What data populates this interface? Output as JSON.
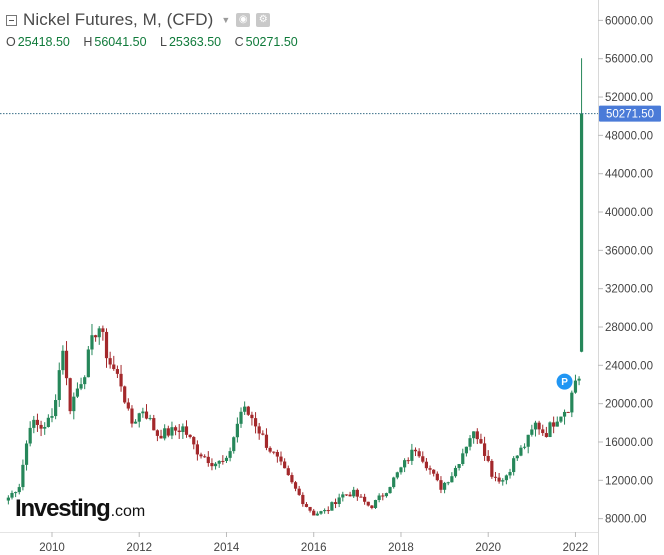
{
  "header": {
    "title": "Nickel Futures, M, (CFD)",
    "ohlc": {
      "o_label": "O",
      "o_value": "25418.50",
      "h_label": "H",
      "h_value": "56041.50",
      "l_label": "L",
      "l_value": "25363.50",
      "c_label": "C",
      "c_value": "50271.50"
    },
    "icons": [
      "collapse-icon",
      "dropdown-caret-icon",
      "eye-icon",
      "gear-icon"
    ]
  },
  "logo": {
    "main": "Investing",
    "suffix": ".com"
  },
  "colors": {
    "up": "#26875a",
    "down": "#a3282b",
    "price_tag": "#4a7bd8",
    "price_line": "#3a6f88",
    "marker": "#2196f3"
  },
  "price_tag": {
    "label": "50271.50",
    "value": 50271.5
  },
  "event_marker": {
    "label": "P",
    "date": "2021.75",
    "value": 22300
  },
  "chart_data": {
    "type": "candlestick",
    "interval": "monthly",
    "y_axis": {
      "min": 6500,
      "max": 61500,
      "ticks": [
        8000,
        12000,
        16000,
        20000,
        24000,
        28000,
        32000,
        36000,
        40000,
        44000,
        48000,
        52000,
        56000,
        60000
      ],
      "tick_labels": [
        "8000.00",
        "12000.00",
        "16000.00",
        "20000.00",
        "24000.00",
        "28000.00",
        "32000.00",
        "36000.00",
        "40000.00",
        "44000.00",
        "48000.00",
        "52000.00",
        "56000.00",
        "60000.00"
      ]
    },
    "x_axis": {
      "min": 2008.9,
      "max": 2022.15,
      "ticks": [
        2010,
        2012,
        2014,
        2016,
        2018,
        2020,
        2022
      ],
      "tick_labels": [
        "2010",
        "2012",
        "2014",
        "2016",
        "2018",
        "2020",
        "2022"
      ]
    },
    "anchors": [
      [
        2009.0,
        10200
      ],
      [
        2009.25,
        11500
      ],
      [
        2009.5,
        18000
      ],
      [
        2009.75,
        17500
      ],
      [
        2010.0,
        18500
      ],
      [
        2010.25,
        26000
      ],
      [
        2010.4,
        19500
      ],
      [
        2010.75,
        23500
      ],
      [
        2011.05,
        28500
      ],
      [
        2011.3,
        24500
      ],
      [
        2011.6,
        22000
      ],
      [
        2011.8,
        17800
      ],
      [
        2012.1,
        19500
      ],
      [
        2012.4,
        16800
      ],
      [
        2012.7,
        17000
      ],
      [
        2013.0,
        17500
      ],
      [
        2013.3,
        15200
      ],
      [
        2013.7,
        13800
      ],
      [
        2014.0,
        13900
      ],
      [
        2014.35,
        19500
      ],
      [
        2014.6,
        18500
      ],
      [
        2014.9,
        15900
      ],
      [
        2015.2,
        13900
      ],
      [
        2015.5,
        11600
      ],
      [
        2015.8,
        9500
      ],
      [
        2016.0,
        8500
      ],
      [
        2016.3,
        8800
      ],
      [
        2016.6,
        10400
      ],
      [
        2016.9,
        10700
      ],
      [
        2017.3,
        9200
      ],
      [
        2017.6,
        10600
      ],
      [
        2018.0,
        13200
      ],
      [
        2018.35,
        15500
      ],
      [
        2018.6,
        13600
      ],
      [
        2018.9,
        11200
      ],
      [
        2019.2,
        12800
      ],
      [
        2019.6,
        16800
      ],
      [
        2019.8,
        16700
      ],
      [
        2020.1,
        12500
      ],
      [
        2020.35,
        12000
      ],
      [
        2020.6,
        14200
      ],
      [
        2020.9,
        16100
      ],
      [
        2021.1,
        18000
      ],
      [
        2021.3,
        16800
      ],
      [
        2021.6,
        18800
      ],
      [
        2021.85,
        19800
      ],
      [
        2022.0,
        22500
      ],
      [
        2022.05,
        22800
      ]
    ],
    "last_candle": {
      "date": 2022.14,
      "open": 25418.5,
      "high": 56041.5,
      "low": 25363.5,
      "close": 50271.5
    }
  }
}
